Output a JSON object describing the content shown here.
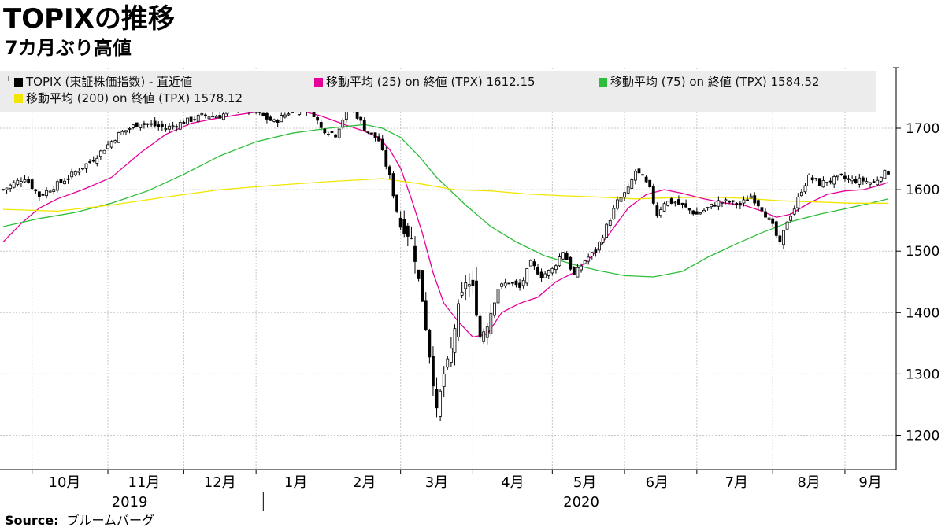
{
  "header": {
    "title": "TOPIXの推移",
    "subtitle": "7カ月ぶり高値"
  },
  "source": {
    "label": "Source:",
    "value": "ブルームバーグ"
  },
  "legend": {
    "items": [
      {
        "key": "candles",
        "label": "TOPIX (東証株価指数) - 直近値",
        "color": "#000000"
      },
      {
        "key": "ma25",
        "label": "移動平均 (25)  on 終値 (TPX)  1612.15",
        "color": "#e6009a"
      },
      {
        "key": "ma75",
        "label": "移動平均 (75)  on 終値 (TPX)  1584.52",
        "color": "#2ebd3a"
      },
      {
        "key": "ma200",
        "label": "移動平均 (200)  on 終値 (TPX)  1578.12",
        "color": "#f2e600"
      }
    ]
  },
  "chart_data": {
    "type": "line",
    "y_range": [
      1200,
      1750
    ],
    "y_ticks": [
      "1200",
      "1300",
      "1400",
      "1500",
      "1600",
      "1700"
    ],
    "x_range": [
      0,
      245
    ],
    "month_labels": [
      {
        "label": "10月",
        "x": 17
      },
      {
        "label": "11月",
        "x": 39
      },
      {
        "label": "12月",
        "x": 60
      },
      {
        "label": "1月",
        "x": 81
      },
      {
        "label": "2月",
        "x": 100
      },
      {
        "label": "3月",
        "x": 120
      },
      {
        "label": "4月",
        "x": 141
      },
      {
        "label": "5月",
        "x": 161
      },
      {
        "label": "6月",
        "x": 181
      },
      {
        "label": "7月",
        "x": 203
      },
      {
        "label": "8月",
        "x": 223
      },
      {
        "label": "9月",
        "x": 240
      }
    ],
    "month_boundaries": [
      8,
      29,
      50,
      70,
      91,
      110,
      130,
      152,
      172,
      192,
      213,
      233
    ],
    "year_labels": [
      {
        "label": "2019",
        "x": 35
      },
      {
        "label": "2020",
        "x": 160
      }
    ],
    "year_boundary": 72,
    "grid": true,
    "candle_anchors": [
      [
        0,
        1600
      ],
      [
        6,
        1620
      ],
      [
        10,
        1590
      ],
      [
        18,
        1620
      ],
      [
        25,
        1650
      ],
      [
        32,
        1690
      ],
      [
        38,
        1710
      ],
      [
        45,
        1700
      ],
      [
        50,
        1710
      ],
      [
        55,
        1720
      ],
      [
        60,
        1720
      ],
      [
        65,
        1735
      ],
      [
        70,
        1725
      ],
      [
        75,
        1710
      ],
      [
        80,
        1730
      ],
      [
        85,
        1735
      ],
      [
        88,
        1700
      ],
      [
        92,
        1690
      ],
      [
        96,
        1740
      ],
      [
        100,
        1700
      ],
      [
        104,
        1680
      ],
      [
        107,
        1620
      ],
      [
        110,
        1540
      ],
      [
        113,
        1520
      ],
      [
        116,
        1420
      ],
      [
        118,
        1330
      ],
      [
        120,
        1240
      ],
      [
        122,
        1300
      ],
      [
        124,
        1340
      ],
      [
        126,
        1410
      ],
      [
        128,
        1450
      ],
      [
        130,
        1440
      ],
      [
        132,
        1360
      ],
      [
        134,
        1380
      ],
      [
        137,
        1440
      ],
      [
        140,
        1450
      ],
      [
        143,
        1440
      ],
      [
        146,
        1480
      ],
      [
        149,
        1460
      ],
      [
        152,
        1470
      ],
      [
        155,
        1500
      ],
      [
        158,
        1460
      ],
      [
        161,
        1485
      ],
      [
        164,
        1500
      ],
      [
        167,
        1540
      ],
      [
        170,
        1580
      ],
      [
        173,
        1600
      ],
      [
        175,
        1630
      ],
      [
        177,
        1620
      ],
      [
        179,
        1600
      ],
      [
        181,
        1560
      ],
      [
        183,
        1580
      ],
      [
        186,
        1580
      ],
      [
        189,
        1570
      ],
      [
        192,
        1560
      ],
      [
        195,
        1570
      ],
      [
        198,
        1580
      ],
      [
        201,
        1580
      ],
      [
        204,
        1575
      ],
      [
        207,
        1590
      ],
      [
        210,
        1570
      ],
      [
        213,
        1540
      ],
      [
        215,
        1510
      ],
      [
        217,
        1550
      ],
      [
        219,
        1570
      ],
      [
        221,
        1600
      ],
      [
        223,
        1620
      ],
      [
        226,
        1610
      ],
      [
        229,
        1615
      ],
      [
        232,
        1620
      ],
      [
        235,
        1615
      ],
      [
        238,
        1615
      ],
      [
        241,
        1610
      ],
      [
        243,
        1625
      ],
      [
        245,
        1629
      ]
    ],
    "series": [
      {
        "name": "移動平均 (25)  on 終値 (TPX)",
        "color": "#e6009a",
        "points": [
          [
            0,
            1515
          ],
          [
            5,
            1545
          ],
          [
            10,
            1570
          ],
          [
            15,
            1585
          ],
          [
            22,
            1600
          ],
          [
            30,
            1620
          ],
          [
            38,
            1660
          ],
          [
            45,
            1690
          ],
          [
            52,
            1708
          ],
          [
            58,
            1715
          ],
          [
            65,
            1722
          ],
          [
            72,
            1728
          ],
          [
            80,
            1732
          ],
          [
            88,
            1720
          ],
          [
            95,
            1705
          ],
          [
            100,
            1695
          ],
          [
            104,
            1685
          ],
          [
            107,
            1665
          ],
          [
            110,
            1635
          ],
          [
            113,
            1585
          ],
          [
            116,
            1530
          ],
          [
            119,
            1465
          ],
          [
            122,
            1415
          ],
          [
            126,
            1385
          ],
          [
            130,
            1360
          ],
          [
            134,
            1365
          ],
          [
            138,
            1400
          ],
          [
            143,
            1415
          ],
          [
            148,
            1425
          ],
          [
            153,
            1450
          ],
          [
            158,
            1465
          ],
          [
            163,
            1492
          ],
          [
            168,
            1530
          ],
          [
            173,
            1570
          ],
          [
            178,
            1592
          ],
          [
            183,
            1600
          ],
          [
            188,
            1594
          ],
          [
            194,
            1585
          ],
          [
            200,
            1578
          ],
          [
            205,
            1575
          ],
          [
            210,
            1565
          ],
          [
            214,
            1555
          ],
          [
            218,
            1560
          ],
          [
            223,
            1578
          ],
          [
            228,
            1592
          ],
          [
            233,
            1598
          ],
          [
            238,
            1600
          ],
          [
            242,
            1606
          ],
          [
            245,
            1612
          ]
        ]
      },
      {
        "name": "移動平均 (75)  on 終値 (TPX)",
        "color": "#2ebd3a",
        "points": [
          [
            0,
            1540
          ],
          [
            10,
            1553
          ],
          [
            20,
            1563
          ],
          [
            30,
            1578
          ],
          [
            40,
            1598
          ],
          [
            50,
            1625
          ],
          [
            60,
            1655
          ],
          [
            70,
            1678
          ],
          [
            80,
            1692
          ],
          [
            90,
            1700
          ],
          [
            100,
            1706
          ],
          [
            105,
            1700
          ],
          [
            110,
            1685
          ],
          [
            115,
            1655
          ],
          [
            120,
            1620
          ],
          [
            128,
            1575
          ],
          [
            135,
            1540
          ],
          [
            142,
            1515
          ],
          [
            150,
            1492
          ],
          [
            158,
            1478
          ],
          [
            165,
            1468
          ],
          [
            172,
            1460
          ],
          [
            180,
            1458
          ],
          [
            188,
            1467
          ],
          [
            195,
            1490
          ],
          [
            203,
            1512
          ],
          [
            210,
            1530
          ],
          [
            218,
            1548
          ],
          [
            226,
            1560
          ],
          [
            234,
            1570
          ],
          [
            240,
            1578
          ],
          [
            245,
            1585
          ]
        ]
      },
      {
        "name": "移動平均 (200)  on 終値 (TPX)",
        "color": "#f2e600",
        "points": [
          [
            0,
            1568
          ],
          [
            15,
            1565
          ],
          [
            30,
            1575
          ],
          [
            45,
            1588
          ],
          [
            60,
            1600
          ],
          [
            75,
            1607
          ],
          [
            90,
            1613
          ],
          [
            105,
            1618
          ],
          [
            115,
            1610
          ],
          [
            125,
            1600
          ],
          [
            135,
            1598
          ],
          [
            145,
            1593
          ],
          [
            155,
            1590
          ],
          [
            165,
            1588
          ],
          [
            175,
            1585
          ],
          [
            185,
            1587
          ],
          [
            195,
            1588
          ],
          [
            205,
            1586
          ],
          [
            215,
            1582
          ],
          [
            225,
            1580
          ],
          [
            235,
            1578
          ],
          [
            245,
            1578
          ]
        ]
      }
    ]
  }
}
